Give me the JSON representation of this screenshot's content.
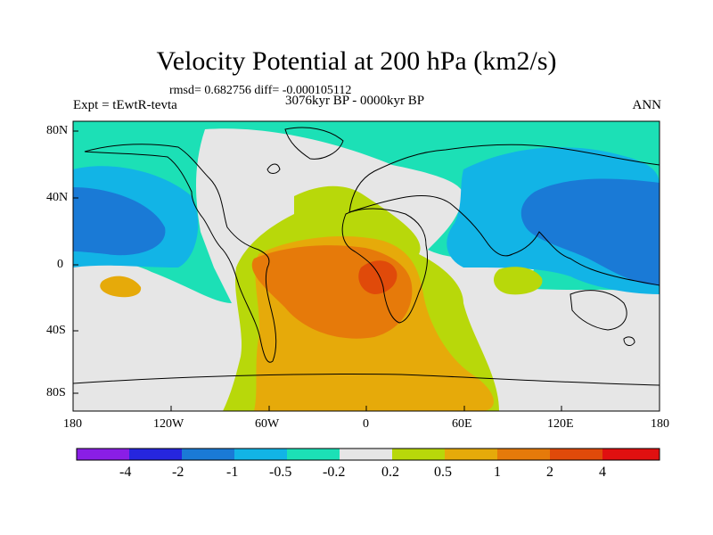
{
  "title": "Velocity Potential at 200 hPa (km2/s)",
  "stats": "rmsd= 0.682756 diff= -0.000105112",
  "experiment": "Expt = tEwtR-tevta",
  "period": "3076kyr BP - 0000kyr BP",
  "season": "ANN",
  "y_ticks": [
    "80N",
    "40N",
    "0",
    "40S",
    "80S"
  ],
  "x_ticks": [
    "180",
    "120W",
    "60W",
    "0",
    "60E",
    "120E",
    "180"
  ],
  "colorbar": {
    "labels": [
      "-4",
      "-2",
      "-1",
      "-0.5",
      "-0.2",
      "0.2",
      "0.5",
      "1",
      "2",
      "4"
    ],
    "colors": [
      "#8a1ee6",
      "#2626de",
      "#1a7ad6",
      "#12b4e6",
      "#1ce0b6",
      "#e6e6e6",
      "#b8d80a",
      "#e6aa0a",
      "#e67a0a",
      "#e04a0a",
      "#e01010"
    ]
  },
  "map_colors": {
    "ocean_base": "#1ce0b6",
    "neg_1": "#12b4e6",
    "neg_2": "#1a7ad6",
    "neutral": "#e6e6e6",
    "pos_1": "#b8d80a",
    "pos_2": "#e6aa0a",
    "pos_3": "#e67a0a",
    "pos_4": "#e04a0a"
  }
}
